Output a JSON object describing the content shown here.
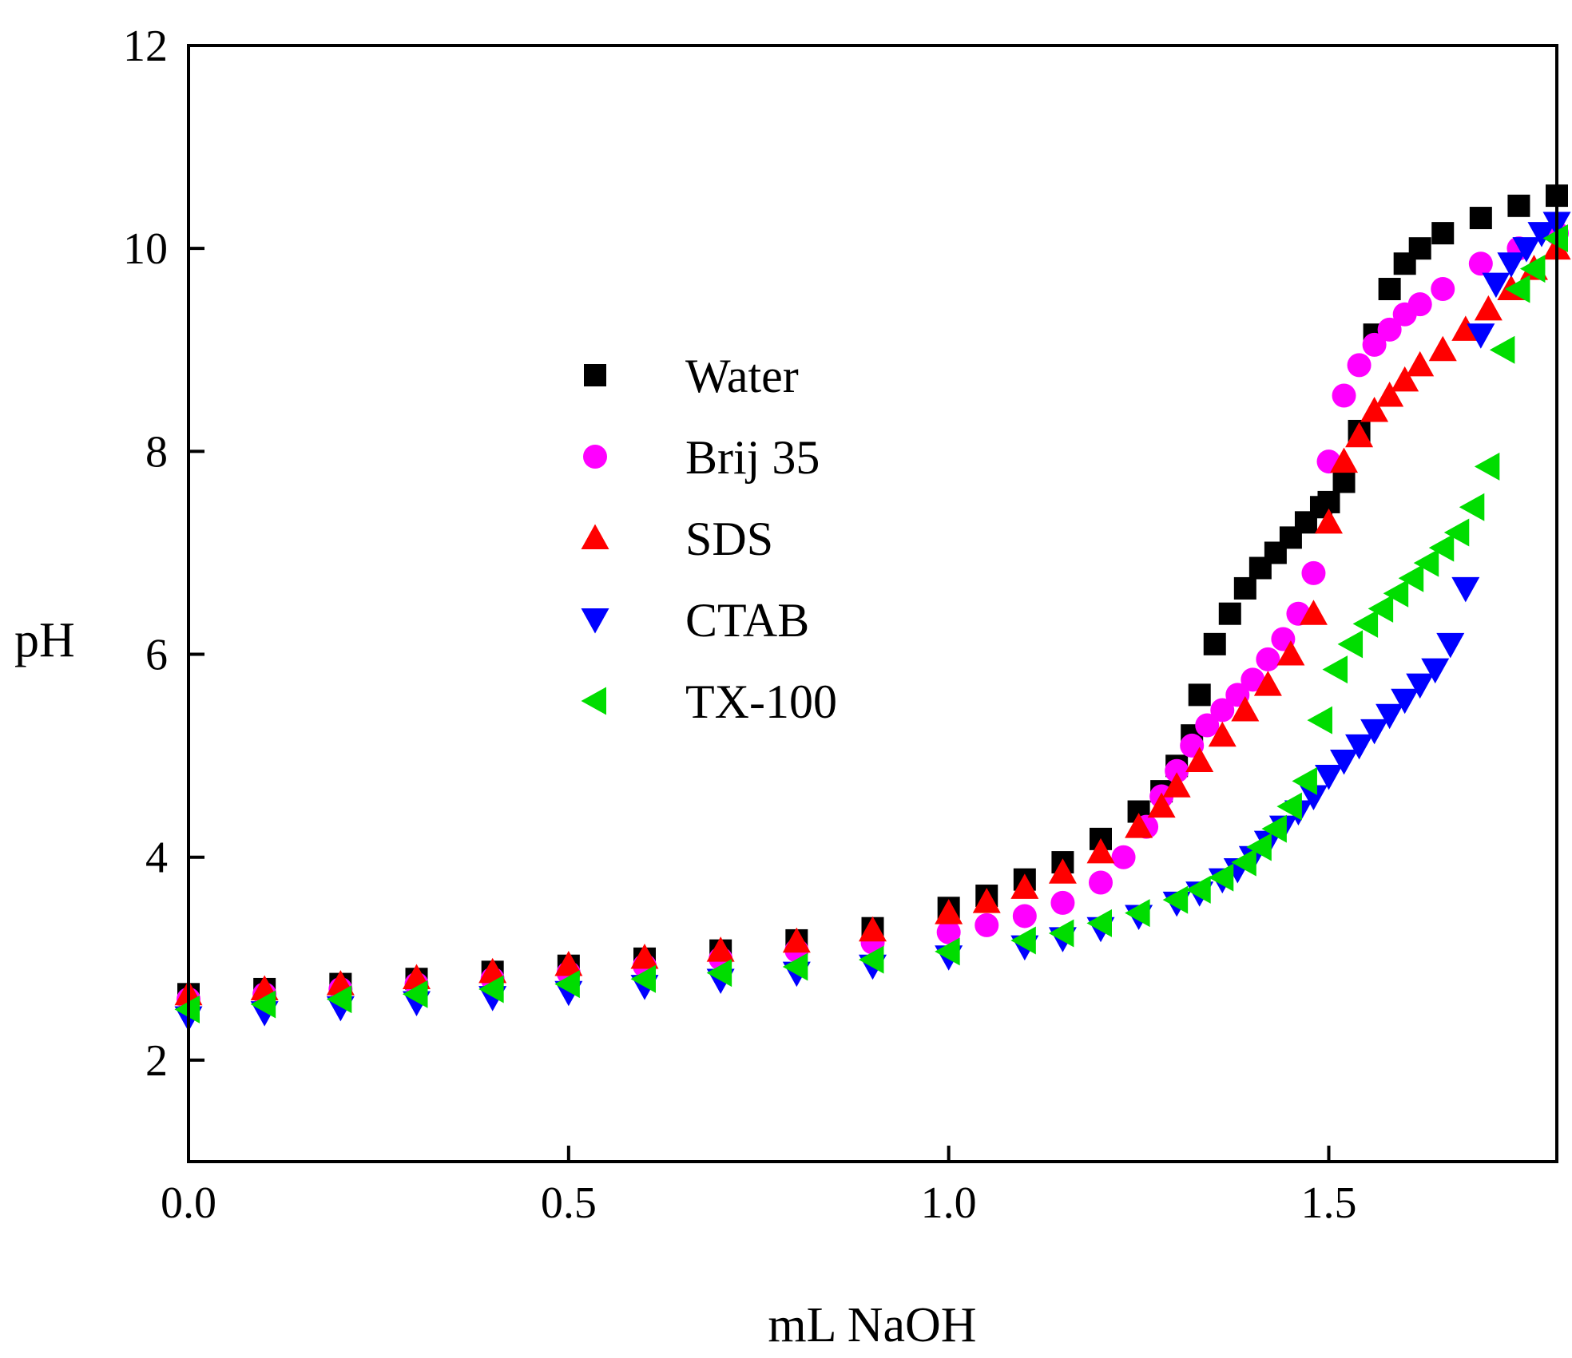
{
  "chart_data": {
    "type": "scatter",
    "title": "",
    "xlabel": "mL NaOH",
    "ylabel": "pH",
    "xlim": [
      0,
      1.8
    ],
    "ylim": [
      1,
      12
    ],
    "xticks": [
      0.0,
      0.5,
      1.0,
      1.5
    ],
    "xtick_labels": [
      "0.0",
      "0.5",
      "1.0",
      "1.5"
    ],
    "yticks": [
      2,
      4,
      6,
      8,
      10,
      12
    ],
    "ytick_labels": [
      "2",
      "4",
      "6",
      "8",
      "10",
      "12"
    ],
    "grid": false,
    "legend_position": "center-left",
    "series": [
      {
        "name": "Water",
        "marker": "square",
        "color": "#000000",
        "x": [
          0.0,
          0.1,
          0.2,
          0.3,
          0.4,
          0.5,
          0.6,
          0.7,
          0.8,
          0.9,
          1.0,
          1.05,
          1.1,
          1.15,
          1.2,
          1.25,
          1.28,
          1.3,
          1.32,
          1.33,
          1.35,
          1.37,
          1.39,
          1.41,
          1.43,
          1.45,
          1.47,
          1.49,
          1.5,
          1.52,
          1.54,
          1.56,
          1.58,
          1.6,
          1.62,
          1.65,
          1.7,
          1.75,
          1.8
        ],
        "y": [
          2.65,
          2.7,
          2.75,
          2.8,
          2.87,
          2.93,
          3.0,
          3.08,
          3.18,
          3.3,
          3.5,
          3.62,
          3.78,
          3.95,
          4.18,
          4.45,
          4.65,
          4.9,
          5.2,
          5.6,
          6.1,
          6.4,
          6.65,
          6.85,
          7.0,
          7.15,
          7.3,
          7.45,
          7.5,
          7.7,
          8.2,
          9.15,
          9.6,
          9.85,
          10.0,
          10.15,
          10.3,
          10.42,
          10.52
        ]
      },
      {
        "name": "Brij 35",
        "marker": "circle",
        "color": "#ff00ff",
        "x": [
          0.0,
          0.1,
          0.2,
          0.3,
          0.4,
          0.5,
          0.6,
          0.7,
          0.8,
          0.9,
          1.0,
          1.05,
          1.1,
          1.15,
          1.2,
          1.23,
          1.26,
          1.28,
          1.3,
          1.32,
          1.34,
          1.36,
          1.38,
          1.4,
          1.42,
          1.44,
          1.46,
          1.48,
          1.5,
          1.52,
          1.54,
          1.56,
          1.58,
          1.6,
          1.62,
          1.65,
          1.7,
          1.75,
          1.8
        ],
        "y": [
          2.6,
          2.65,
          2.7,
          2.75,
          2.8,
          2.86,
          2.93,
          3.0,
          3.08,
          3.16,
          3.26,
          3.33,
          3.42,
          3.55,
          3.75,
          4.0,
          4.3,
          4.6,
          4.85,
          5.1,
          5.3,
          5.45,
          5.6,
          5.75,
          5.95,
          6.15,
          6.4,
          6.8,
          7.9,
          8.55,
          8.85,
          9.05,
          9.2,
          9.35,
          9.45,
          9.6,
          9.85,
          10.0,
          10.15
        ]
      },
      {
        "name": "SDS",
        "marker": "triangle-up",
        "color": "#ff0000",
        "x": [
          0.0,
          0.1,
          0.2,
          0.3,
          0.4,
          0.5,
          0.6,
          0.7,
          0.8,
          0.9,
          1.0,
          1.05,
          1.1,
          1.15,
          1.2,
          1.25,
          1.28,
          1.3,
          1.33,
          1.36,
          1.39,
          1.42,
          1.45,
          1.48,
          1.5,
          1.52,
          1.54,
          1.56,
          1.58,
          1.6,
          1.62,
          1.65,
          1.68,
          1.71,
          1.74,
          1.77,
          1.8
        ],
        "y": [
          2.65,
          2.7,
          2.75,
          2.81,
          2.87,
          2.94,
          3.01,
          3.08,
          3.17,
          3.28,
          3.45,
          3.56,
          3.7,
          3.85,
          4.05,
          4.3,
          4.5,
          4.7,
          4.95,
          5.2,
          5.45,
          5.7,
          6.0,
          6.4,
          7.3,
          7.9,
          8.15,
          8.4,
          8.55,
          8.7,
          8.85,
          9.0,
          9.2,
          9.4,
          9.6,
          9.8,
          10.0
        ]
      },
      {
        "name": "CTAB",
        "marker": "triangle-down",
        "color": "#0000ff",
        "x": [
          0.0,
          0.1,
          0.2,
          0.3,
          0.4,
          0.5,
          0.6,
          0.7,
          0.8,
          0.9,
          1.0,
          1.1,
          1.15,
          1.2,
          1.25,
          1.3,
          1.33,
          1.36,
          1.38,
          1.4,
          1.42,
          1.44,
          1.46,
          1.48,
          1.5,
          1.52,
          1.54,
          1.56,
          1.58,
          1.6,
          1.62,
          1.64,
          1.66,
          1.68,
          1.7,
          1.72,
          1.74,
          1.76,
          1.78,
          1.8
        ],
        "y": [
          2.42,
          2.47,
          2.52,
          2.57,
          2.62,
          2.67,
          2.73,
          2.79,
          2.86,
          2.93,
          3.02,
          3.12,
          3.2,
          3.3,
          3.42,
          3.55,
          3.65,
          3.78,
          3.88,
          4.0,
          4.15,
          4.3,
          4.45,
          4.6,
          4.8,
          4.95,
          5.1,
          5.25,
          5.4,
          5.55,
          5.7,
          5.85,
          6.1,
          6.65,
          9.15,
          9.65,
          9.85,
          10.0,
          10.15,
          10.25
        ]
      },
      {
        "name": "TX-100",
        "marker": "triangle-left",
        "color": "#00dd00",
        "x": [
          0.0,
          0.1,
          0.2,
          0.3,
          0.4,
          0.5,
          0.6,
          0.7,
          0.8,
          0.9,
          1.0,
          1.1,
          1.15,
          1.2,
          1.25,
          1.3,
          1.33,
          1.36,
          1.39,
          1.41,
          1.43,
          1.45,
          1.47,
          1.49,
          1.51,
          1.53,
          1.55,
          1.57,
          1.59,
          1.61,
          1.63,
          1.65,
          1.67,
          1.69,
          1.71,
          1.73,
          1.75,
          1.77,
          1.8
        ],
        "y": [
          2.5,
          2.55,
          2.6,
          2.65,
          2.7,
          2.75,
          2.8,
          2.86,
          2.92,
          2.99,
          3.07,
          3.18,
          3.25,
          3.35,
          3.45,
          3.58,
          3.68,
          3.8,
          3.95,
          4.1,
          4.28,
          4.5,
          4.75,
          5.35,
          5.85,
          6.1,
          6.3,
          6.45,
          6.6,
          6.75,
          6.9,
          7.05,
          7.2,
          7.45,
          7.85,
          9.0,
          9.6,
          9.8,
          10.1
        ]
      }
    ]
  }
}
